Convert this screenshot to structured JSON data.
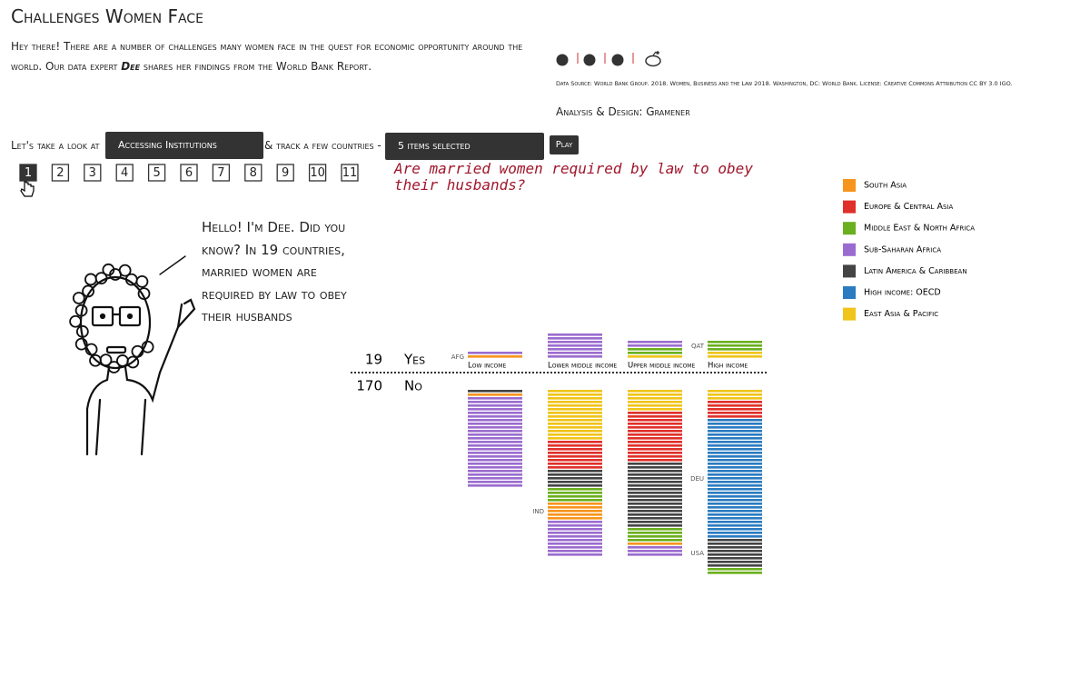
{
  "header": {
    "title": "Challenges Women Face",
    "intro_before": "Hey there! There are a number of challenges many women face in the quest for economic opportunity around the world. Our data expert ",
    "expert": "Dee",
    "intro_after": " shares her findings from the World Bank Report."
  },
  "source": "Data Source: World Bank Group. 2018. Women, Business and the Law 2018. Washington, DC: World Bank. License: Creative Commons Attribution CC BY 3.0 IGO.",
  "credit": "Analysis & Design: Gramener",
  "controls": {
    "lead": "Let's take a look at",
    "topic": "Accessing Institutions",
    "joiner": "& track a few countries -",
    "countries": "5 items selected",
    "play": "Play"
  },
  "pages": [
    1,
    2,
    3,
    4,
    5,
    6,
    7,
    8,
    9,
    10,
    11
  ],
  "question": "Are married women required by law to obey their husbands?",
  "speech": "Hello! I'm Dee. Did you know? In 19 countries, married women are required by law to obey their husbands",
  "chart_data": {
    "type": "stacked-lines",
    "answers": [
      {
        "count": 19,
        "label": "Yes"
      },
      {
        "count": 170,
        "label": "No"
      }
    ],
    "regions": [
      {
        "name": "South Asia",
        "color": "#f7941d"
      },
      {
        "name": "Europe & Central Asia",
        "color": "#e0302a"
      },
      {
        "name": "Middle East & North Africa",
        "color": "#6aaf1e"
      },
      {
        "name": "Sub-Saharan Africa",
        "color": "#9b6ccf"
      },
      {
        "name": "Latin America & Caribbean",
        "color": "#444444"
      },
      {
        "name": "High income: OECD",
        "color": "#2b7bc0"
      },
      {
        "name": "East Asia & Pacific",
        "color": "#f0c419"
      }
    ],
    "groups": [
      {
        "name": "Low income",
        "yes": [
          {
            "color": "#9b6ccf",
            "count": 1
          },
          {
            "color": "#f7941d",
            "count": 1,
            "label": "AFG"
          }
        ],
        "no": [
          {
            "color": "#444444",
            "count": 1
          },
          {
            "color": "#f7941d",
            "count": 1
          },
          {
            "color": "#9b6ccf",
            "count": 25
          }
        ]
      },
      {
        "name": "Lower middle income",
        "yes": [
          {
            "color": "#9b6ccf",
            "count": 7
          }
        ],
        "no": [
          {
            "color": "#f0c419",
            "count": 14
          },
          {
            "color": "#e0302a",
            "count": 8
          },
          {
            "color": "#444444",
            "count": 5
          },
          {
            "color": "#6aaf1e",
            "count": 4
          },
          {
            "color": "#f7941d",
            "count": 5,
            "label": "IND"
          },
          {
            "color": "#9b6ccf",
            "count": 10
          }
        ]
      },
      {
        "name": "Upper middle income",
        "yes": [
          {
            "color": "#9b6ccf",
            "count": 2
          },
          {
            "color": "#6aaf1e",
            "count": 2
          },
          {
            "color": "#f0c419",
            "count": 1
          }
        ],
        "no": [
          {
            "color": "#f0c419",
            "count": 6
          },
          {
            "color": "#e0302a",
            "count": 14
          },
          {
            "color": "#444444",
            "count": 18
          },
          {
            "color": "#6aaf1e",
            "count": 4
          },
          {
            "color": "#f7941d",
            "count": 1
          },
          {
            "color": "#9b6ccf",
            "count": 3
          }
        ]
      },
      {
        "name": "High income",
        "yes": [
          {
            "color": "#6aaf1e",
            "count": 3,
            "label": "QAT"
          },
          {
            "color": "#f0c419",
            "count": 2
          }
        ],
        "no": [
          {
            "color": "#f0c419",
            "count": 3
          },
          {
            "color": "#e0302a",
            "count": 5
          },
          {
            "color": "#2b7bc0",
            "count": 33,
            "label": "DEU"
          },
          {
            "color": "#444444",
            "count": 8,
            "label": "USA"
          },
          {
            "color": "#6aaf1e",
            "count": 2
          }
        ]
      }
    ]
  }
}
